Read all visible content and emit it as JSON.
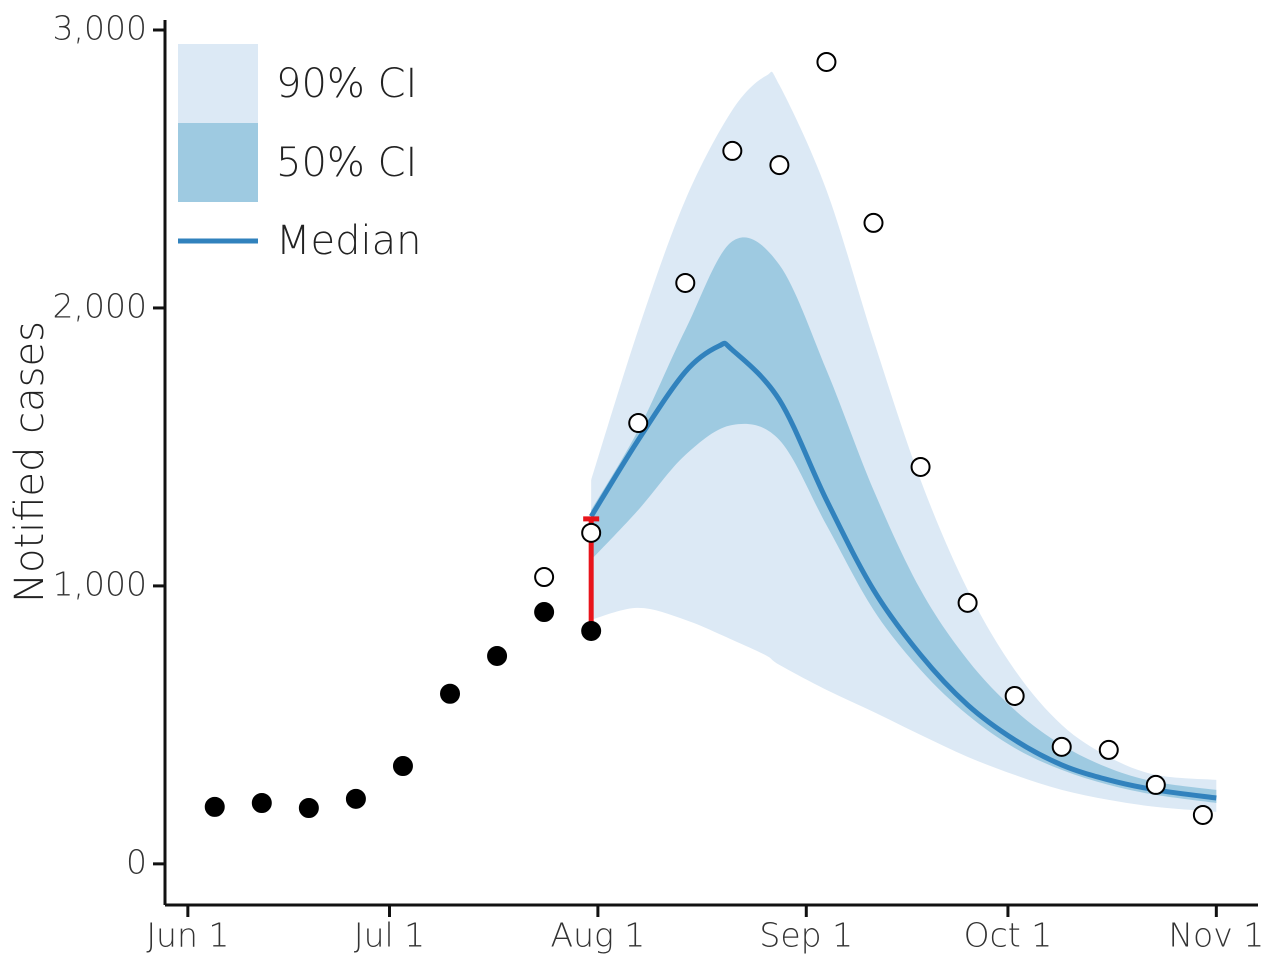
{
  "chart_data": {
    "type": "line",
    "ylabel": "Notified cases",
    "xlim": [
      -3.4,
      159.2
    ],
    "xticks": [
      {
        "value": 0,
        "label": "Jun 1"
      },
      {
        "value": 30,
        "label": "Jul 1"
      },
      {
        "value": 61,
        "label": "Aug 1"
      },
      {
        "value": 92,
        "label": "Sep 1"
      },
      {
        "value": 122,
        "label": "Oct 1"
      },
      {
        "value": 153,
        "label": "Nov 1"
      }
    ],
    "ylim": [
      -148,
      3036
    ],
    "yticks": [
      0,
      {
        "value": 1000,
        "label": "1,000"
      },
      {
        "value": 2000,
        "label": "2,000"
      },
      {
        "value": 3000,
        "label": "3,000"
      }
    ],
    "bands": [
      {
        "name": "90% CI",
        "color": "#dce9f5",
        "x": [
          60,
          67,
          74,
          81,
          86,
          88,
          95,
          102,
          109,
          116,
          123,
          130,
          137,
          144,
          153
        ],
        "low": [
          878,
          921,
          878,
          806,
          750,
          716,
          626,
          547,
          464,
          385,
          320,
          266,
          230,
          205,
          187
        ],
        "high": [
          1381,
          1921,
          2388,
          2712,
          2835,
          2802,
          2424,
          1885,
          1381,
          986,
          698,
          500,
          385,
          320,
          302
        ]
      },
      {
        "name": "50% CI",
        "color": "#9ecae1",
        "x": [
          60,
          67,
          74,
          81,
          88,
          95,
          102,
          109,
          116,
          123,
          130,
          137,
          144,
          153
        ],
        "low": [
          1094,
          1273,
          1471,
          1579,
          1525,
          1219,
          914,
          698,
          536,
          417,
          338,
          284,
          248,
          219
        ],
        "high": [
          1273,
          1561,
          1921,
          2240,
          2155,
          1777,
          1345,
          986,
          734,
          554,
          428,
          345,
          295,
          266
        ]
      }
    ],
    "series": [
      {
        "name": "Median",
        "color": "#3182bd",
        "x": [
          60,
          67,
          74,
          79,
          81,
          88,
          95,
          102,
          109,
          116,
          123,
          130,
          137,
          144,
          153
        ],
        "values": [
          1250,
          1525,
          1770,
          1863,
          1849,
          1669,
          1309,
          986,
          752,
          572,
          446,
          356,
          302,
          266,
          237
        ]
      }
    ],
    "red_bar": {
      "x": 60,
      "from": 838,
      "to": 1241,
      "color": "#e8141b"
    },
    "points": [
      {
        "fill": "#000000",
        "x": [
          4,
          11,
          18,
          25,
          32,
          39,
          46,
          53,
          60
        ],
        "values": [
          205,
          219,
          201,
          234,
          352,
          612,
          748,
          906,
          838
        ]
      },
      {
        "fill": "#ffffff",
        "x": [
          53,
          60,
          67,
          74,
          81,
          88,
          95,
          102,
          109,
          116,
          123,
          130,
          137,
          144,
          151
        ],
        "values": [
          1032,
          1191,
          1586,
          2090,
          2565,
          2514,
          2885,
          2306,
          1428,
          939,
          604,
          421,
          410,
          284,
          176
        ]
      }
    ]
  }
}
